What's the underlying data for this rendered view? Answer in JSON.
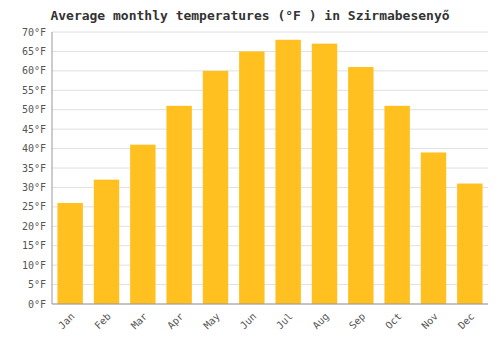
{
  "chart_data": {
    "type": "bar",
    "title": "Average monthly temperatures (°F ) in Szirmabesenyő",
    "categories": [
      "Jan",
      "Feb",
      "Mar",
      "Apr",
      "May",
      "Jun",
      "Jul",
      "Aug",
      "Sep",
      "Oct",
      "Nov",
      "Dec"
    ],
    "values": [
      26,
      32,
      41,
      51,
      60,
      65,
      68,
      67,
      61,
      51,
      39,
      31
    ],
    "color": "#FFC020",
    "ylim": [
      0,
      70
    ],
    "yticks": [
      {
        "value": 0,
        "label": "0°F"
      },
      {
        "value": 5,
        "label": "5°F"
      },
      {
        "value": 10,
        "label": "10°F"
      },
      {
        "value": 15,
        "label": "15°F"
      },
      {
        "value": 20,
        "label": "20°F"
      },
      {
        "value": 25,
        "label": "25°F"
      },
      {
        "value": 30,
        "label": "30°F"
      },
      {
        "value": 35,
        "label": "35°F"
      },
      {
        "value": 40,
        "label": "40°F"
      },
      {
        "value": 45,
        "label": "45°F"
      },
      {
        "value": 50,
        "label": "50°F"
      },
      {
        "value": 55,
        "label": "55°F"
      },
      {
        "value": 60,
        "label": "60°F"
      },
      {
        "value": 65,
        "label": "65°F"
      },
      {
        "value": 70,
        "label": "70°F"
      }
    ],
    "grid": true
  }
}
